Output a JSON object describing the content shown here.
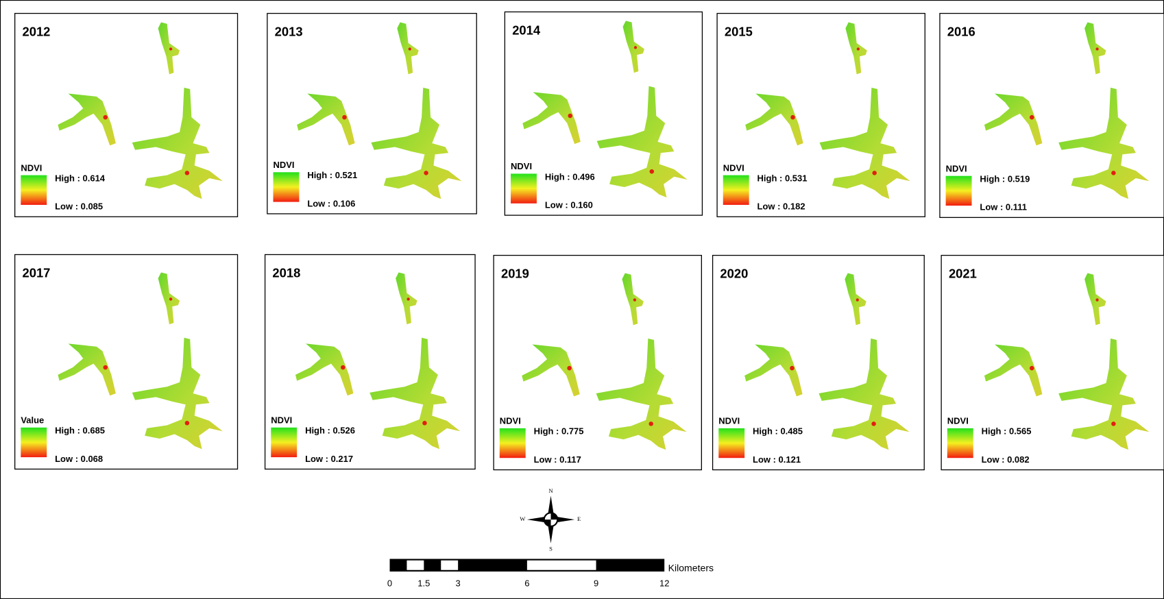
{
  "panels": [
    {
      "year": "2012",
      "legend_title": "NDVI",
      "high": "High : 0.614",
      "low": "Low : 0.085"
    },
    {
      "year": "2013",
      "legend_title": "NDVI",
      "high": "High : 0.521",
      "low": "Low : 0.106"
    },
    {
      "year": "2014",
      "legend_title": "NDVI",
      "high": "High : 0.496",
      "low": "Low : 0.160"
    },
    {
      "year": "2015",
      "legend_title": "NDVI",
      "high": "High : 0.531",
      "low": "Low : 0.182"
    },
    {
      "year": "2016",
      "legend_title": "NDVI",
      "high": "High : 0.519",
      "low": "Low : 0.111"
    },
    {
      "year": "2017",
      "legend_title": "Value",
      "high": "High : 0.685",
      "low": "Low : 0.068"
    },
    {
      "year": "2018",
      "legend_title": "NDVI",
      "high": "High : 0.526",
      "low": "Low : 0.217"
    },
    {
      "year": "2019",
      "legend_title": "NDVI",
      "high": "High : 0.775",
      "low": "Low : 0.117"
    },
    {
      "year": "2020",
      "legend_title": "NDVI",
      "high": "High : 0.485",
      "low": "Low : 0.121"
    },
    {
      "year": "2021",
      "legend_title": "NDVI",
      "high": "High : 0.565",
      "low": "Low : 0.082"
    }
  ],
  "compass": {
    "north": "N",
    "south": "S",
    "east": "E",
    "west": "W"
  },
  "scale_bar": {
    "unit": "Kilometers",
    "ticks": [
      "0",
      "1.5",
      "3",
      "6",
      "9",
      "12"
    ]
  }
}
